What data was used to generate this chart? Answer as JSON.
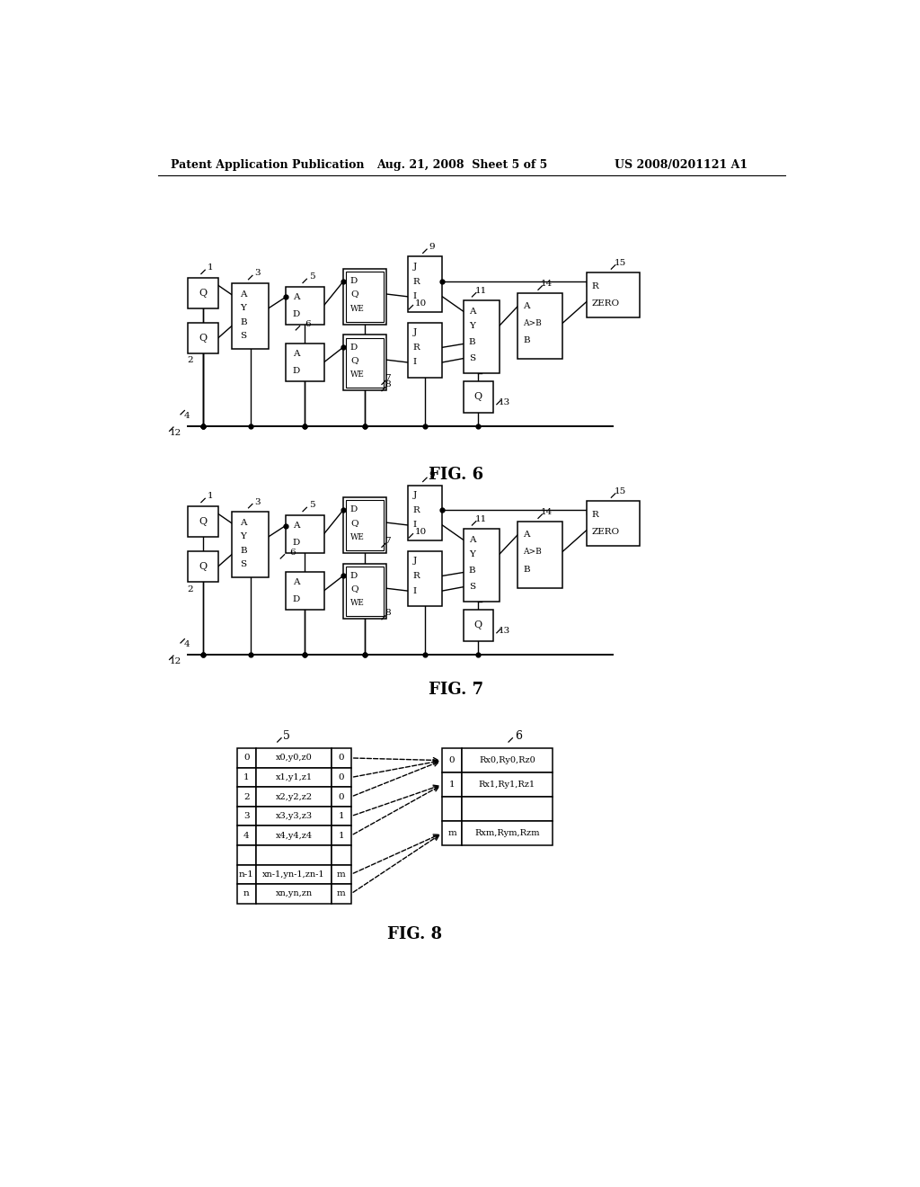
{
  "header_left": "Patent Application Publication",
  "header_mid": "Aug. 21, 2008  Sheet 5 of 5",
  "header_right": "US 2008/0201121 A1",
  "bg_color": "#ffffff",
  "fig6_label": "FIG. 6",
  "fig7_label": "FIG. 7",
  "fig8_label": "FIG. 8"
}
